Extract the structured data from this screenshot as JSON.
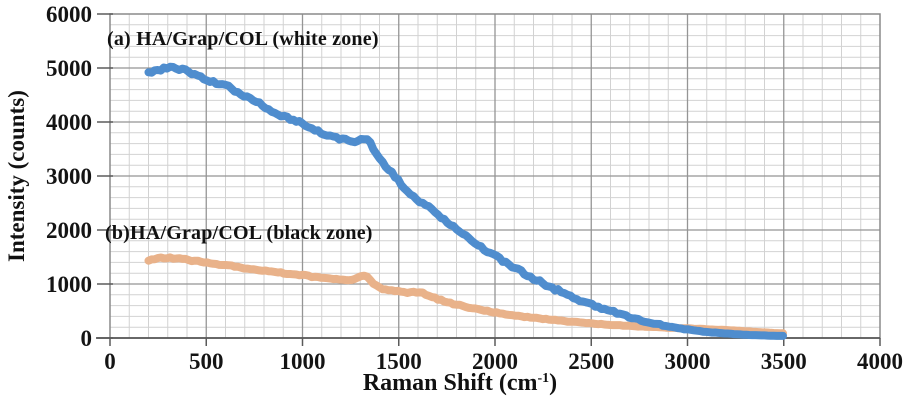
{
  "page": {
    "background": "#ffffff"
  },
  "chart_data": {
    "type": "line",
    "title": "",
    "xlabel": "Raman Shift (cm⁻¹)",
    "xlabel_parts": {
      "prefix": "Raman Shift (cm",
      "sup": "-1",
      "suffix": ")"
    },
    "ylabel": "Intensity (counts)",
    "xlim": [
      0,
      4000
    ],
    "ylim": [
      0,
      6000
    ],
    "x_major_step": 500,
    "x_minor_step": 100,
    "y_major_step": 1000,
    "y_minor_step": 200,
    "x_ticks": [
      0,
      500,
      1000,
      1500,
      2000,
      2500,
      3000,
      3500,
      4000
    ],
    "y_ticks": [
      0,
      1000,
      2000,
      3000,
      4000,
      5000,
      6000
    ],
    "grid": true,
    "legend_position": "inline-annotations",
    "colors": {
      "grid_minor": "#d2d2d2",
      "grid_major": "#959595",
      "border": "#8a8a8a",
      "axis": "#5a5a5a",
      "text": "#141414",
      "series_white_zone": "#4f8dce",
      "series_black_zone": "#e9b28a"
    },
    "series": [
      {
        "id": "white-zone",
        "name": "(a) HA/Grap/COL (white zone)",
        "color": "#4f8dce",
        "stroke_width": 8,
        "noise": 28,
        "points": [
          [
            200,
            4900
          ],
          [
            230,
            4945
          ],
          [
            260,
            4975
          ],
          [
            290,
            5000
          ],
          [
            320,
            5005
          ],
          [
            350,
            4985
          ],
          [
            380,
            4960
          ],
          [
            410,
            4935
          ],
          [
            440,
            4880
          ],
          [
            470,
            4830
          ],
          [
            500,
            4775
          ],
          [
            530,
            4740
          ],
          [
            560,
            4710
          ],
          [
            590,
            4680
          ],
          [
            620,
            4645
          ],
          [
            650,
            4585
          ],
          [
            680,
            4525
          ],
          [
            710,
            4465
          ],
          [
            740,
            4410
          ],
          [
            770,
            4355
          ],
          [
            800,
            4290
          ],
          [
            830,
            4230
          ],
          [
            860,
            4165
          ],
          [
            890,
            4115
          ],
          [
            920,
            4080
          ],
          [
            950,
            4045
          ],
          [
            980,
            4010
          ],
          [
            1010,
            3955
          ],
          [
            1040,
            3900
          ],
          [
            1070,
            3840
          ],
          [
            1100,
            3790
          ],
          [
            1130,
            3755
          ],
          [
            1160,
            3725
          ],
          [
            1190,
            3695
          ],
          [
            1220,
            3670
          ],
          [
            1250,
            3645
          ],
          [
            1280,
            3630
          ],
          [
            1300,
            3665
          ],
          [
            1320,
            3700
          ],
          [
            1340,
            3665
          ],
          [
            1360,
            3560
          ],
          [
            1380,
            3450
          ],
          [
            1400,
            3340
          ],
          [
            1420,
            3245
          ],
          [
            1440,
            3155
          ],
          [
            1460,
            3075
          ],
          [
            1480,
            2985
          ],
          [
            1500,
            2900
          ],
          [
            1520,
            2820
          ],
          [
            1540,
            2745
          ],
          [
            1560,
            2675
          ],
          [
            1580,
            2605
          ],
          [
            1600,
            2545
          ],
          [
            1620,
            2490
          ],
          [
            1640,
            2445
          ],
          [
            1660,
            2410
          ],
          [
            1680,
            2360
          ],
          [
            1700,
            2300
          ],
          [
            1730,
            2215
          ],
          [
            1760,
            2130
          ],
          [
            1790,
            2045
          ],
          [
            1820,
            1965
          ],
          [
            1850,
            1885
          ],
          [
            1880,
            1805
          ],
          [
            1910,
            1730
          ],
          [
            1940,
            1655
          ],
          [
            1970,
            1585
          ],
          [
            2000,
            1515
          ],
          [
            2030,
            1450
          ],
          [
            2060,
            1385
          ],
          [
            2090,
            1320
          ],
          [
            2120,
            1260
          ],
          [
            2150,
            1200
          ],
          [
            2180,
            1140
          ],
          [
            2210,
            1085
          ],
          [
            2240,
            1030
          ],
          [
            2270,
            975
          ],
          [
            2300,
            925
          ],
          [
            2330,
            875
          ],
          [
            2360,
            825
          ],
          [
            2390,
            780
          ],
          [
            2420,
            735
          ],
          [
            2450,
            690
          ],
          [
            2480,
            650
          ],
          [
            2510,
            610
          ],
          [
            2540,
            570
          ],
          [
            2570,
            535
          ],
          [
            2600,
            500
          ],
          [
            2630,
            465
          ],
          [
            2660,
            430
          ],
          [
            2690,
            400
          ],
          [
            2720,
            370
          ],
          [
            2750,
            340
          ],
          [
            2780,
            310
          ],
          [
            2810,
            285
          ],
          [
            2840,
            260
          ],
          [
            2870,
            238
          ],
          [
            2900,
            216
          ],
          [
            2930,
            196
          ],
          [
            2960,
            178
          ],
          [
            2990,
            162
          ],
          [
            3020,
            147
          ],
          [
            3050,
            133
          ],
          [
            3080,
            121
          ],
          [
            3110,
            110
          ],
          [
            3140,
            100
          ],
          [
            3170,
            91
          ],
          [
            3200,
            83
          ],
          [
            3230,
            76
          ],
          [
            3260,
            69
          ],
          [
            3290,
            63
          ],
          [
            3320,
            58
          ],
          [
            3350,
            53
          ],
          [
            3380,
            49
          ],
          [
            3410,
            45
          ],
          [
            3440,
            42
          ],
          [
            3470,
            40
          ],
          [
            3500,
            38
          ]
        ]
      },
      {
        "id": "black-zone",
        "name": "(b)HA/Grap/COL (black zone)",
        "color": "#e9b28a",
        "stroke_width": 8,
        "noise": 13,
        "points": [
          [
            200,
            1430
          ],
          [
            230,
            1462
          ],
          [
            260,
            1480
          ],
          [
            290,
            1487
          ],
          [
            320,
            1482
          ],
          [
            350,
            1472
          ],
          [
            380,
            1458
          ],
          [
            410,
            1443
          ],
          [
            440,
            1428
          ],
          [
            470,
            1413
          ],
          [
            500,
            1398
          ],
          [
            530,
            1383
          ],
          [
            560,
            1368
          ],
          [
            590,
            1352
          ],
          [
            620,
            1337
          ],
          [
            650,
            1322
          ],
          [
            680,
            1307
          ],
          [
            710,
            1292
          ],
          [
            740,
            1277
          ],
          [
            770,
            1262
          ],
          [
            800,
            1247
          ],
          [
            830,
            1232
          ],
          [
            860,
            1217
          ],
          [
            890,
            1203
          ],
          [
            920,
            1192
          ],
          [
            950,
            1182
          ],
          [
            980,
            1172
          ],
          [
            1010,
            1158
          ],
          [
            1040,
            1144
          ],
          [
            1070,
            1132
          ],
          [
            1100,
            1121
          ],
          [
            1130,
            1110
          ],
          [
            1160,
            1100
          ],
          [
            1190,
            1090
          ],
          [
            1220,
            1082
          ],
          [
            1250,
            1076
          ],
          [
            1270,
            1086
          ],
          [
            1290,
            1128
          ],
          [
            1310,
            1162
          ],
          [
            1330,
            1145
          ],
          [
            1350,
            1075
          ],
          [
            1370,
            1000
          ],
          [
            1390,
            950
          ],
          [
            1410,
            920
          ],
          [
            1430,
            900
          ],
          [
            1450,
            886
          ],
          [
            1480,
            870
          ],
          [
            1510,
            856
          ],
          [
            1540,
            846
          ],
          [
            1570,
            843
          ],
          [
            1600,
            848
          ],
          [
            1620,
            835
          ],
          [
            1640,
            812
          ],
          [
            1660,
            783
          ],
          [
            1680,
            752
          ],
          [
            1700,
            722
          ],
          [
            1730,
            688
          ],
          [
            1760,
            656
          ],
          [
            1790,
            627
          ],
          [
            1820,
            600
          ],
          [
            1850,
            576
          ],
          [
            1880,
            553
          ],
          [
            1910,
            531
          ],
          [
            1940,
            511
          ],
          [
            1970,
            492
          ],
          [
            2000,
            474
          ],
          [
            2040,
            451
          ],
          [
            2080,
            430
          ],
          [
            2120,
            410
          ],
          [
            2160,
            391
          ],
          [
            2200,
            374
          ],
          [
            2240,
            357
          ],
          [
            2280,
            342
          ],
          [
            2320,
            327
          ],
          [
            2360,
            313
          ],
          [
            2400,
            300
          ],
          [
            2440,
            288
          ],
          [
            2480,
            276
          ],
          [
            2520,
            265
          ],
          [
            2560,
            255
          ],
          [
            2600,
            245
          ],
          [
            2640,
            236
          ],
          [
            2680,
            228
          ],
          [
            2720,
            220
          ],
          [
            2760,
            213
          ],
          [
            2800,
            206
          ],
          [
            2840,
            200
          ],
          [
            2880,
            194
          ],
          [
            2920,
            188
          ],
          [
            2960,
            183
          ],
          [
            3000,
            178
          ],
          [
            3040,
            172
          ],
          [
            3080,
            166
          ],
          [
            3120,
            160
          ],
          [
            3160,
            153
          ],
          [
            3200,
            146
          ],
          [
            3240,
            138
          ],
          [
            3280,
            130
          ],
          [
            3320,
            121
          ],
          [
            3360,
            112
          ],
          [
            3400,
            103
          ],
          [
            3440,
            95
          ],
          [
            3480,
            88
          ],
          [
            3500,
            85
          ]
        ]
      }
    ]
  }
}
